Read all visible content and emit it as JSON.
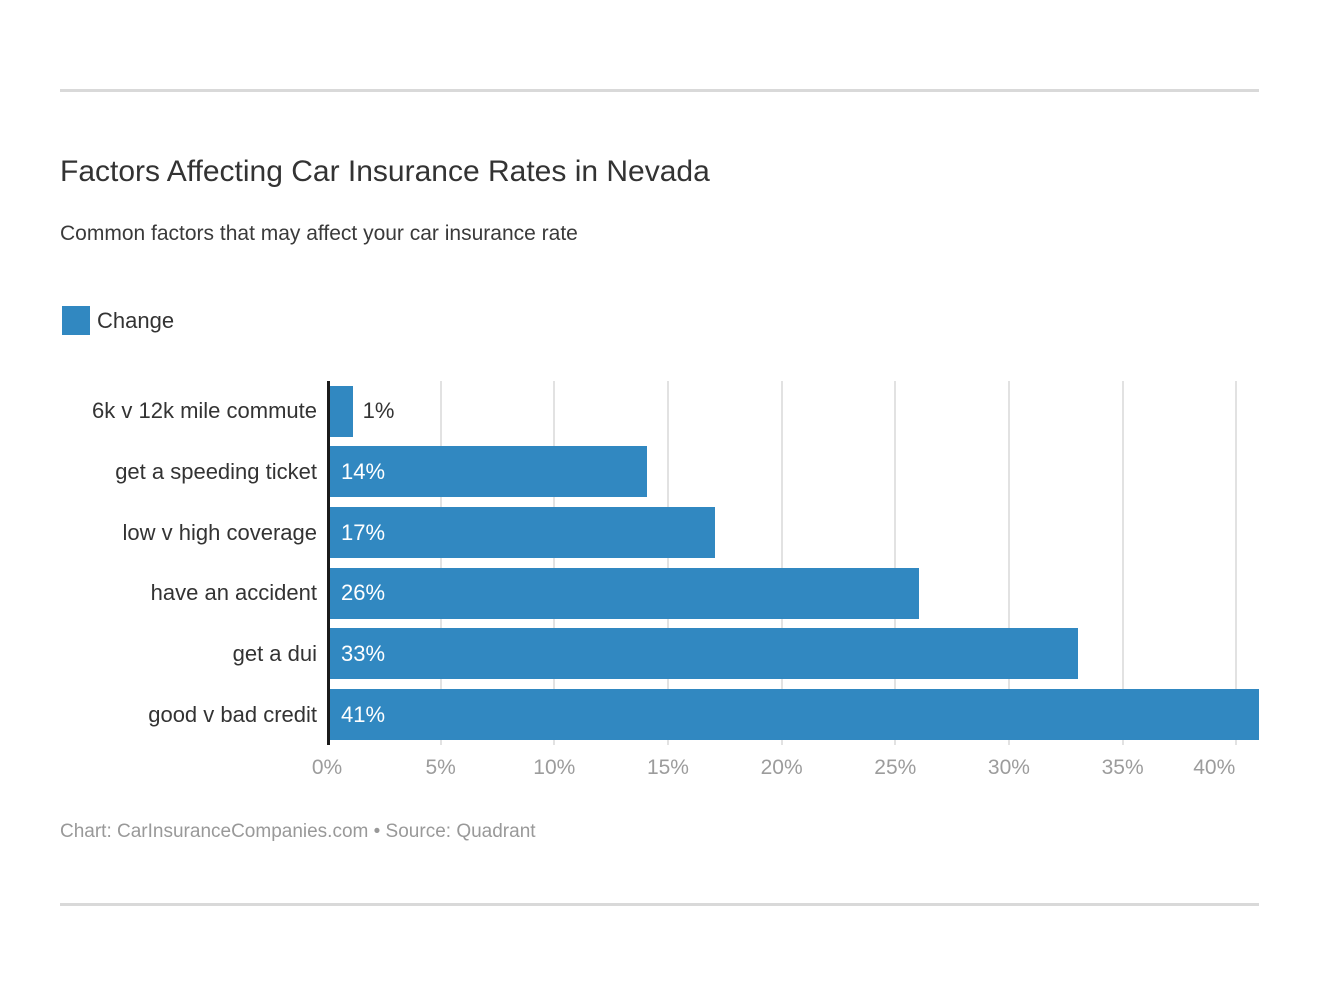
{
  "page": {
    "title": "Factors Affecting Car Insurance Rates in Nevada",
    "subtitle": "Common factors that may affect your car insurance rate",
    "footer": "Chart: CarInsuranceCompanies.com • Source: Quadrant"
  },
  "legend": {
    "label": "Change",
    "color": "#3188c1"
  },
  "colors": {
    "bar": "#3188c1",
    "axis": "#1b1b1b",
    "grid": "#e2e2e2",
    "text": "#333333",
    "tick": "#9c9c9c",
    "muted": "#999999",
    "rule": "#d9d9d9"
  },
  "chart_data": {
    "type": "bar",
    "orientation": "horizontal",
    "title": "Factors Affecting Car Insurance Rates in Nevada",
    "subtitle": "Common factors that may affect your car insurance rate",
    "series_name": "Change",
    "categories": [
      "6k v 12k mile commute",
      "get a speeding ticket",
      "low v high coverage",
      "have an accident",
      "get a dui",
      "good v bad credit"
    ],
    "values": [
      1,
      14,
      17,
      26,
      33,
      41
    ],
    "value_labels": [
      "1%",
      "14%",
      "17%",
      "26%",
      "33%",
      "41%"
    ],
    "xlim": [
      0,
      41
    ],
    "x_tick_values": [
      0,
      5,
      10,
      15,
      20,
      25,
      30,
      35,
      40
    ],
    "x_ticks": [
      "0%",
      "5%",
      "10%",
      "15%",
      "20%",
      "25%",
      "30%",
      "35%",
      "40%"
    ],
    "grid": true,
    "legend_position": "top-left",
    "bar_color": "#3188c1",
    "value_label_inside_color": "#ffffff",
    "value_label_outside_color": "#333333"
  }
}
